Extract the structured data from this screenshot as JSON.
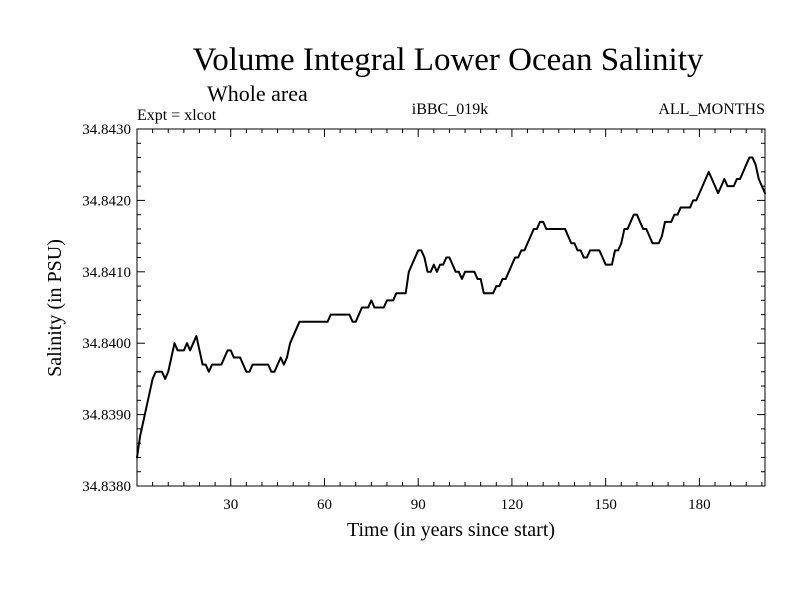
{
  "chart_data": {
    "type": "line",
    "title": "Volume Integral Lower Ocean Salinity",
    "subtitle": "Whole area",
    "header_left": "Expt = xlcot",
    "header_center": "iBBC_019k",
    "header_right": "ALL_MONTHS",
    "xlabel": "Time (in years since start)",
    "ylabel": "Salinity (in PSU)",
    "xlim": [
      0,
      201
    ],
    "ylim": [
      34.838,
      34.843
    ],
    "xticks": [
      30,
      60,
      90,
      120,
      150,
      180
    ],
    "xtick_labels": [
      "30",
      "60",
      "90",
      "120",
      "150",
      "180"
    ],
    "yticks": [
      34.838,
      34.839,
      34.84,
      34.841,
      34.842,
      34.843
    ],
    "ytick_labels": [
      "34.8380",
      "34.8390",
      "34.8400",
      "34.8410",
      "34.8420",
      "34.8430"
    ],
    "series": [
      {
        "name": "salinity",
        "color": "#000000",
        "x": [
          0,
          1,
          2,
          3,
          4,
          5,
          6,
          7,
          8,
          9,
          10,
          11,
          12,
          13,
          14,
          15,
          16,
          17,
          18,
          19,
          20,
          21,
          22,
          23,
          24,
          25,
          26,
          27,
          28,
          29,
          30,
          31,
          32,
          33,
          34,
          35,
          36,
          37,
          38,
          39,
          40,
          41,
          42,
          43,
          44,
          45,
          46,
          47,
          48,
          49,
          50,
          51,
          52,
          53,
          54,
          55,
          56,
          57,
          58,
          59,
          60,
          61,
          62,
          63,
          64,
          65,
          66,
          67,
          68,
          69,
          70,
          71,
          72,
          73,
          74,
          75,
          76,
          77,
          78,
          79,
          80,
          81,
          82,
          83,
          84,
          85,
          86,
          87,
          88,
          89,
          90,
          91,
          92,
          93,
          94,
          95,
          96,
          97,
          98,
          99,
          100,
          101,
          102,
          103,
          104,
          105,
          106,
          107,
          108,
          109,
          110,
          111,
          112,
          113,
          114,
          115,
          116,
          117,
          118,
          119,
          120,
          121,
          122,
          123,
          124,
          125,
          126,
          127,
          128,
          129,
          130,
          131,
          132,
          133,
          134,
          135,
          136,
          137,
          138,
          139,
          140,
          141,
          142,
          143,
          144,
          145,
          146,
          147,
          148,
          149,
          150,
          151,
          152,
          153,
          154,
          155,
          156,
          157,
          158,
          159,
          160,
          161,
          162,
          163,
          164,
          165,
          166,
          167,
          168,
          169,
          170,
          171,
          172,
          173,
          174,
          175,
          176,
          177,
          178,
          179,
          180,
          181,
          182,
          183,
          184,
          185,
          186,
          187,
          188,
          189,
          190,
          191,
          192,
          193,
          194,
          195,
          196,
          197,
          198,
          199,
          200,
          201
        ],
        "values": [
          34.8384,
          34.8387,
          34.8389,
          34.8391,
          34.8393,
          34.8395,
          34.8396,
          34.8396,
          34.8396,
          34.8395,
          34.8396,
          34.8398,
          34.84,
          34.8399,
          34.8399,
          34.8399,
          34.84,
          34.8399,
          34.84,
          34.8401,
          34.8399,
          34.8397,
          34.8397,
          34.8396,
          34.8397,
          34.8397,
          34.8397,
          34.8397,
          34.8398,
          34.8399,
          34.8399,
          34.8398,
          34.8398,
          34.8398,
          34.8397,
          34.8396,
          34.8396,
          34.8397,
          34.8397,
          34.8397,
          34.8397,
          34.8397,
          34.8397,
          34.8396,
          34.8396,
          34.8397,
          34.8398,
          34.8397,
          34.8398,
          34.84,
          34.8401,
          34.8402,
          34.8403,
          34.8403,
          34.8403,
          34.8403,
          34.8403,
          34.8403,
          34.8403,
          34.8403,
          34.8403,
          34.8403,
          34.8404,
          34.8404,
          34.8404,
          34.8404,
          34.8404,
          34.8404,
          34.8404,
          34.8403,
          34.8403,
          34.8404,
          34.8405,
          34.8405,
          34.8405,
          34.8406,
          34.8405,
          34.8405,
          34.8405,
          34.8405,
          34.8406,
          34.8406,
          34.8406,
          34.8407,
          34.8407,
          34.8407,
          34.8407,
          34.841,
          34.8411,
          34.8412,
          34.8413,
          34.8413,
          34.8412,
          34.841,
          34.841,
          34.8411,
          34.841,
          34.8411,
          34.8411,
          34.8412,
          34.8412,
          34.8411,
          34.841,
          34.841,
          34.8409,
          34.841,
          34.841,
          34.841,
          34.841,
          34.8409,
          34.8409,
          34.8407,
          34.8407,
          34.8407,
          34.8407,
          34.8408,
          34.8408,
          34.8409,
          34.8409,
          34.841,
          34.8411,
          34.8412,
          34.8412,
          34.8413,
          34.8413,
          34.8414,
          34.8415,
          34.8416,
          34.8416,
          34.8417,
          34.8417,
          34.8416,
          34.8416,
          34.8416,
          34.8416,
          34.8416,
          34.8416,
          34.8416,
          34.8415,
          34.8414,
          34.8414,
          34.8413,
          34.8413,
          34.8412,
          34.8412,
          34.8413,
          34.8413,
          34.8413,
          34.8413,
          34.8412,
          34.8411,
          34.8411,
          34.8411,
          34.8413,
          34.8413,
          34.8414,
          34.8416,
          34.8416,
          34.8417,
          34.8418,
          34.8418,
          34.8417,
          34.8416,
          34.8416,
          34.8415,
          34.8414,
          34.8414,
          34.8414,
          34.8415,
          34.8417,
          34.8417,
          34.8417,
          34.8418,
          34.8418,
          34.8419,
          34.8419,
          34.8419,
          34.8419,
          34.842,
          34.842,
          34.8421,
          34.8422,
          34.8423,
          34.8424,
          34.8423,
          34.8422,
          34.8421,
          34.8422,
          34.8423,
          34.8422,
          34.8422,
          34.8422,
          34.8423,
          34.8423,
          34.8424,
          34.8425,
          34.8426,
          34.8426,
          34.8425,
          34.8423,
          34.8422,
          34.8421
        ]
      }
    ]
  }
}
